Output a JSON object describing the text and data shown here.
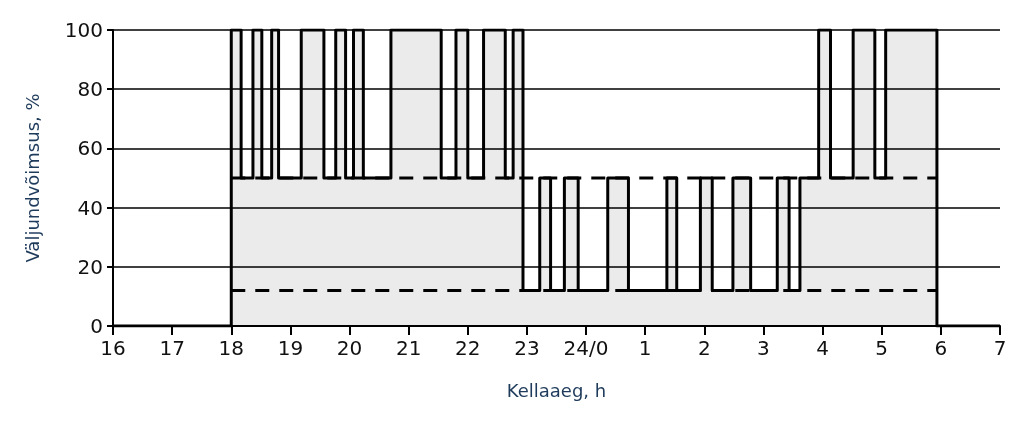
{
  "chart_data": {
    "type": "step",
    "xlabel": "Kellaaeg, h",
    "ylabel": "Väljundvõimsus, %",
    "xlim": [
      "--01-01T16:00",
      "--01-02T07:00"
    ],
    "xticks": [
      {
        "value": "--01-01T16:00",
        "label": "16"
      },
      {
        "value": "--01-01T17:00",
        "label": "17"
      },
      {
        "value": "--01-01T18:00",
        "label": "18"
      },
      {
        "value": "--01-01T19:00",
        "label": "19"
      },
      {
        "value": "--01-01T20:00",
        "label": "20"
      },
      {
        "value": "--01-01T21:00",
        "label": "21"
      },
      {
        "value": "--01-01T22:00",
        "label": "22"
      },
      {
        "value": "--01-01T23:00",
        "label": "23"
      },
      {
        "value": "--01-02T00:00",
        "label": "24/0"
      },
      {
        "value": "--01-02T01:00",
        "label": "1"
      },
      {
        "value": "--01-02T02:00",
        "label": "2"
      },
      {
        "value": "--01-02T03:00",
        "label": "3"
      },
      {
        "value": "--01-02T04:00",
        "label": "4"
      },
      {
        "value": "--01-02T05:00",
        "label": "5"
      },
      {
        "value": "--01-02T06:00",
        "label": "6"
      },
      {
        "value": "--01-02T07:00",
        "label": "7"
      }
    ],
    "ylim": [
      0,
      100
    ],
    "yticks": [
      0,
      20,
      40,
      60,
      80,
      100
    ],
    "grid": "y",
    "marker": "none",
    "line_style": "solid",
    "series": [
      {
        "type": "area",
        "color": "#000000",
        "x": [
          "--01-01T16:00",
          "--01-01T18:00",
          "--01-01T18:10",
          "--01-01T18:22",
          "--01-01T18:31",
          "--01-01T18:41",
          "--01-01T18:48",
          "--01-01T19:11",
          "--01-01T19:34",
          "--01-01T19:46",
          "--01-01T19:56",
          "--01-01T20:04",
          "--01-01T20:14",
          "--01-01T20:42",
          "--01-01T21:33",
          "--01-01T21:48",
          "--01-01T22:00",
          "--01-01T22:16",
          "--01-01T22:38",
          "--01-01T22:46",
          "--01-01T22:56",
          "--01-01T23:13",
          "--01-01T23:24",
          "--01-01T23:38",
          "--01-01T23:52",
          "--01-02T00:22",
          "--01-02T00:43",
          "--01-02T01:22",
          "--01-02T01:32",
          "--01-02T01:56",
          "--01-02T02:08",
          "--01-02T02:29",
          "--01-02T02:47",
          "--01-02T03:14",
          "--01-02T03:26",
          "--01-02T03:37",
          "--01-02T03:56",
          "--01-02T04:08",
          "--01-02T04:31",
          "--01-02T04:53",
          "--01-02T05:04",
          "--01-02T05:56",
          "--01-02T07:00"
        ],
        "values": [
          0,
          100,
          50,
          100,
          50,
          100,
          50,
          100,
          50,
          100,
          50,
          100,
          50,
          100,
          50,
          100,
          50,
          100,
          50,
          100,
          12,
          50,
          12,
          50,
          12,
          50,
          12,
          50,
          12,
          50,
          12,
          50,
          12,
          50,
          12,
          50,
          100,
          50,
          100,
          50,
          100,
          0,
          0
        ]
      },
      {
        "color": "#000000",
        "line_style": "dashed",
        "x": [
          "--01-01T18:00",
          "--01-02T05:56"
        ],
        "values": [
          50,
          50
        ]
      },
      {
        "color": "#000000",
        "line_style": "dashed",
        "x": [
          "--01-01T18:00",
          "--01-02T05:56"
        ],
        "values": [
          12,
          12
        ]
      }
    ]
  }
}
